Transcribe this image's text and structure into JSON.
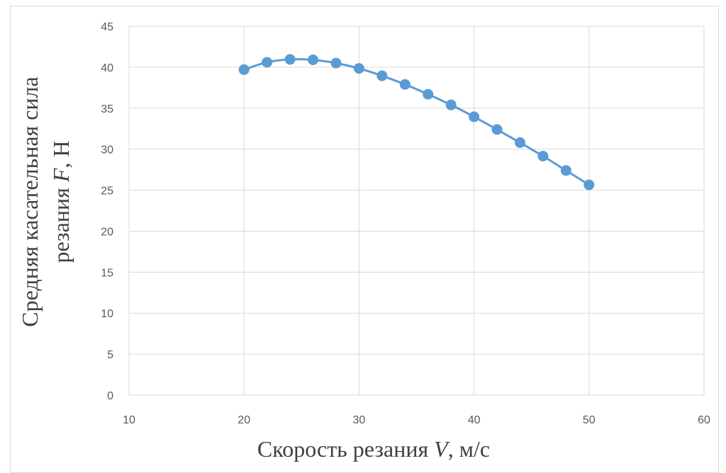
{
  "chart_data": {
    "type": "scatter",
    "mode": "lines+markers",
    "series": [
      {
        "x": [
          20,
          22,
          24,
          26,
          28,
          30,
          32,
          34,
          36,
          38,
          40,
          42,
          44,
          46,
          48,
          50
        ],
        "y": [
          39.7,
          40.6,
          40.95,
          40.9,
          40.5,
          39.85,
          38.95,
          37.9,
          36.7,
          35.4,
          33.95,
          32.4,
          30.8,
          29.15,
          27.4,
          25.65
        ],
        "color": "#5b9bd5"
      }
    ],
    "xlim": [
      10,
      60
    ],
    "ylim": [
      0,
      45
    ],
    "xticks": [
      10,
      20,
      30,
      40,
      50,
      60
    ],
    "yticks": [
      0,
      5,
      10,
      15,
      20,
      25,
      30,
      35,
      40,
      45
    ],
    "grid": true,
    "xlabel": {
      "before": "Скорость резания ",
      "var": "V",
      "after": ", м/с"
    },
    "ylabel": {
      "line1": "Средняя касательная сила",
      "line2_before": "резания ",
      "line2_var": "F",
      "line2_after": ", Н"
    }
  }
}
